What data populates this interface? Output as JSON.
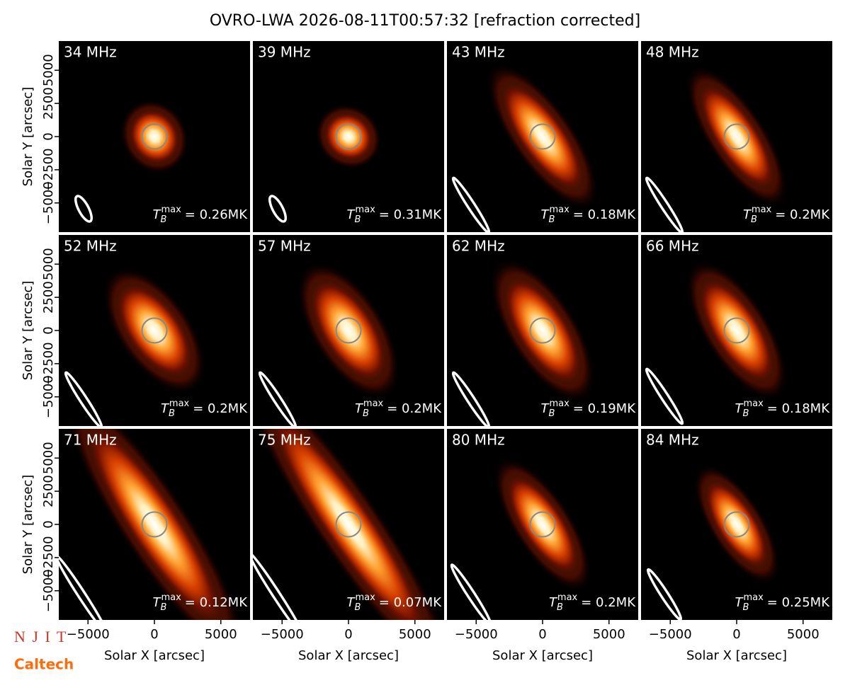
{
  "figure_title": "OVRO-LWA 2026-08-11T00:57:32 [refraction corrected]",
  "logos": [
    "N J I T",
    "Caltech"
  ],
  "chart_data": [
    {
      "type": "heatmap",
      "label": "34 MHz",
      "annotation": {
        "symbol": "T",
        "sub": "B",
        "sup": "max",
        "text": "= 0.26MK"
      },
      "xlim": [
        -7200,
        7200
      ],
      "ylim": [
        -7200,
        7200
      ],
      "ylabel": "Solar Y [arcsec]",
      "yticks": [
        {
          "value": -5000,
          "label": "−5000"
        },
        {
          "value": -2500,
          "label": "−2500"
        },
        0,
        2500,
        5000
      ]
    },
    {
      "type": "heatmap",
      "label": "39 MHz",
      "annotation": {
        "symbol": "T",
        "sub": "B",
        "sup": "max",
        "text": "= 0.31MK"
      },
      "xlim": [
        -7200,
        7200
      ],
      "ylim": [
        -7200,
        7200
      ]
    },
    {
      "type": "heatmap",
      "label": "43 MHz",
      "annotation": {
        "symbol": "T",
        "sub": "B",
        "sup": "max",
        "text": "= 0.18MK"
      },
      "xlim": [
        -7200,
        7200
      ],
      "ylim": [
        -7200,
        7200
      ]
    },
    {
      "type": "heatmap",
      "label": "48 MHz",
      "annotation": {
        "symbol": "T",
        "sub": "B",
        "sup": "max",
        "text": "= 0.2MK"
      },
      "xlim": [
        -7200,
        7200
      ],
      "ylim": [
        -7200,
        7200
      ]
    },
    {
      "type": "heatmap",
      "label": "52 MHz",
      "annotation": {
        "symbol": "T",
        "sub": "B",
        "sup": "max",
        "text": "= 0.2MK"
      },
      "xlim": [
        -7200,
        7200
      ],
      "ylim": [
        -7200,
        7200
      ],
      "ylabel": "Solar Y [arcsec]",
      "yticks": [
        {
          "value": -5000,
          "label": "−5000"
        },
        {
          "value": -2500,
          "label": "−2500"
        },
        0,
        2500,
        5000
      ]
    },
    {
      "type": "heatmap",
      "label": "57 MHz",
      "annotation": {
        "symbol": "T",
        "sub": "B",
        "sup": "max",
        "text": "= 0.2MK"
      },
      "xlim": [
        -7200,
        7200
      ],
      "ylim": [
        -7200,
        7200
      ]
    },
    {
      "type": "heatmap",
      "label": "62 MHz",
      "annotation": {
        "symbol": "T",
        "sub": "B",
        "sup": "max",
        "text": "= 0.19MK"
      },
      "xlim": [
        -7200,
        7200
      ],
      "ylim": [
        -7200,
        7200
      ]
    },
    {
      "type": "heatmap",
      "label": "66 MHz",
      "annotation": {
        "symbol": "T",
        "sub": "B",
        "sup": "max",
        "text": "= 0.18MK"
      },
      "xlim": [
        -7200,
        7200
      ],
      "ylim": [
        -7200,
        7200
      ]
    },
    {
      "type": "heatmap",
      "label": "71 MHz",
      "annotation": {
        "symbol": "T",
        "sub": "B",
        "sup": "max",
        "text": "= 0.12MK"
      },
      "xlim": [
        -7200,
        7200
      ],
      "ylim": [
        -7200,
        7200
      ],
      "ylabel": "Solar Y [arcsec]",
      "yticks": [
        {
          "value": -5000,
          "label": "−5000"
        },
        {
          "value": -2500,
          "label": "−2500"
        },
        0,
        2500,
        5000
      ],
      "xlabel": "Solar X [arcsec]",
      "xticks": [
        {
          "value": -5000,
          "label": "−5000"
        },
        0,
        5000
      ]
    },
    {
      "type": "heatmap",
      "label": "75 MHz",
      "annotation": {
        "symbol": "T",
        "sub": "B",
        "sup": "max",
        "text": "= 0.07MK"
      },
      "xlim": [
        -7200,
        7200
      ],
      "ylim": [
        -7200,
        7200
      ],
      "xlabel": "Solar X [arcsec]",
      "xticks": [
        {
          "value": -5000,
          "label": "−5000"
        },
        0,
        5000
      ]
    },
    {
      "type": "heatmap",
      "label": "80 MHz",
      "annotation": {
        "symbol": "T",
        "sub": "B",
        "sup": "max",
        "text": "= 0.2MK"
      },
      "xlim": [
        -7200,
        7200
      ],
      "ylim": [
        -7200,
        7200
      ],
      "xlabel": "Solar X [arcsec]",
      "xticks": [
        {
          "value": -5000,
          "label": "−5000"
        },
        0,
        5000
      ]
    },
    {
      "type": "heatmap",
      "label": "84 MHz",
      "annotation": {
        "symbol": "T",
        "sub": "B",
        "sup": "max",
        "text": "= 0.25MK"
      },
      "xlim": [
        -7200,
        7200
      ],
      "ylim": [
        -7200,
        7200
      ],
      "xlabel": "Solar X [arcsec]",
      "xticks": [
        {
          "value": -5000,
          "label": "−5000"
        },
        0,
        5000
      ]
    }
  ]
}
